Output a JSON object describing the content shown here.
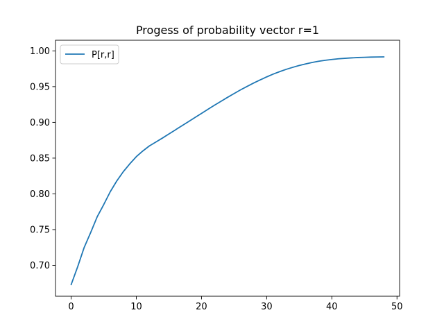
{
  "chart_data": {
    "type": "line",
    "title": "Progess of probability vector r=1",
    "xlabel": "",
    "ylabel": "",
    "xlim": [
      -2.4,
      50.4
    ],
    "ylim": [
      0.6568,
      1.0149
    ],
    "xticks": [
      0,
      10,
      20,
      30,
      40,
      50
    ],
    "yticks": [
      0.7,
      0.75,
      0.8,
      0.85,
      0.9,
      0.95,
      1.0
    ],
    "xtick_labels": [
      "0",
      "10",
      "20",
      "30",
      "40",
      "50"
    ],
    "ytick_labels": [
      "0.70",
      "0.75",
      "0.80",
      "0.85",
      "0.90",
      "0.95",
      "1.00"
    ],
    "grid": false,
    "legend_position": "upper-left",
    "series": [
      {
        "name": "P[r,r]",
        "color": "#1f77b4",
        "x": [
          0,
          1,
          2,
          3,
          4,
          5,
          6,
          7,
          8,
          9,
          10,
          11,
          12,
          13,
          14,
          15,
          16,
          17,
          18,
          19,
          20,
          21,
          22,
          23,
          24,
          25,
          26,
          27,
          28,
          29,
          30,
          31,
          32,
          33,
          34,
          35,
          36,
          37,
          38,
          39,
          40,
          41,
          42,
          43,
          44,
          45,
          46,
          47,
          48
        ],
        "values": [
          0.673,
          0.698,
          0.725,
          0.746,
          0.768,
          0.785,
          0.803,
          0.818,
          0.831,
          0.842,
          0.852,
          0.86,
          0.867,
          0.8725,
          0.878,
          0.8838,
          0.8895,
          0.8953,
          0.901,
          0.9068,
          0.9125,
          0.9183,
          0.924,
          0.9295,
          0.935,
          0.9403,
          0.9455,
          0.9503,
          0.955,
          0.9594,
          0.9636,
          0.9675,
          0.971,
          0.9742,
          0.977,
          0.9796,
          0.9818,
          0.9838,
          0.9855,
          0.9869,
          0.988,
          0.9889,
          0.9896,
          0.9902,
          0.9907,
          0.991,
          0.9913,
          0.9915,
          0.9916
        ]
      }
    ]
  }
}
